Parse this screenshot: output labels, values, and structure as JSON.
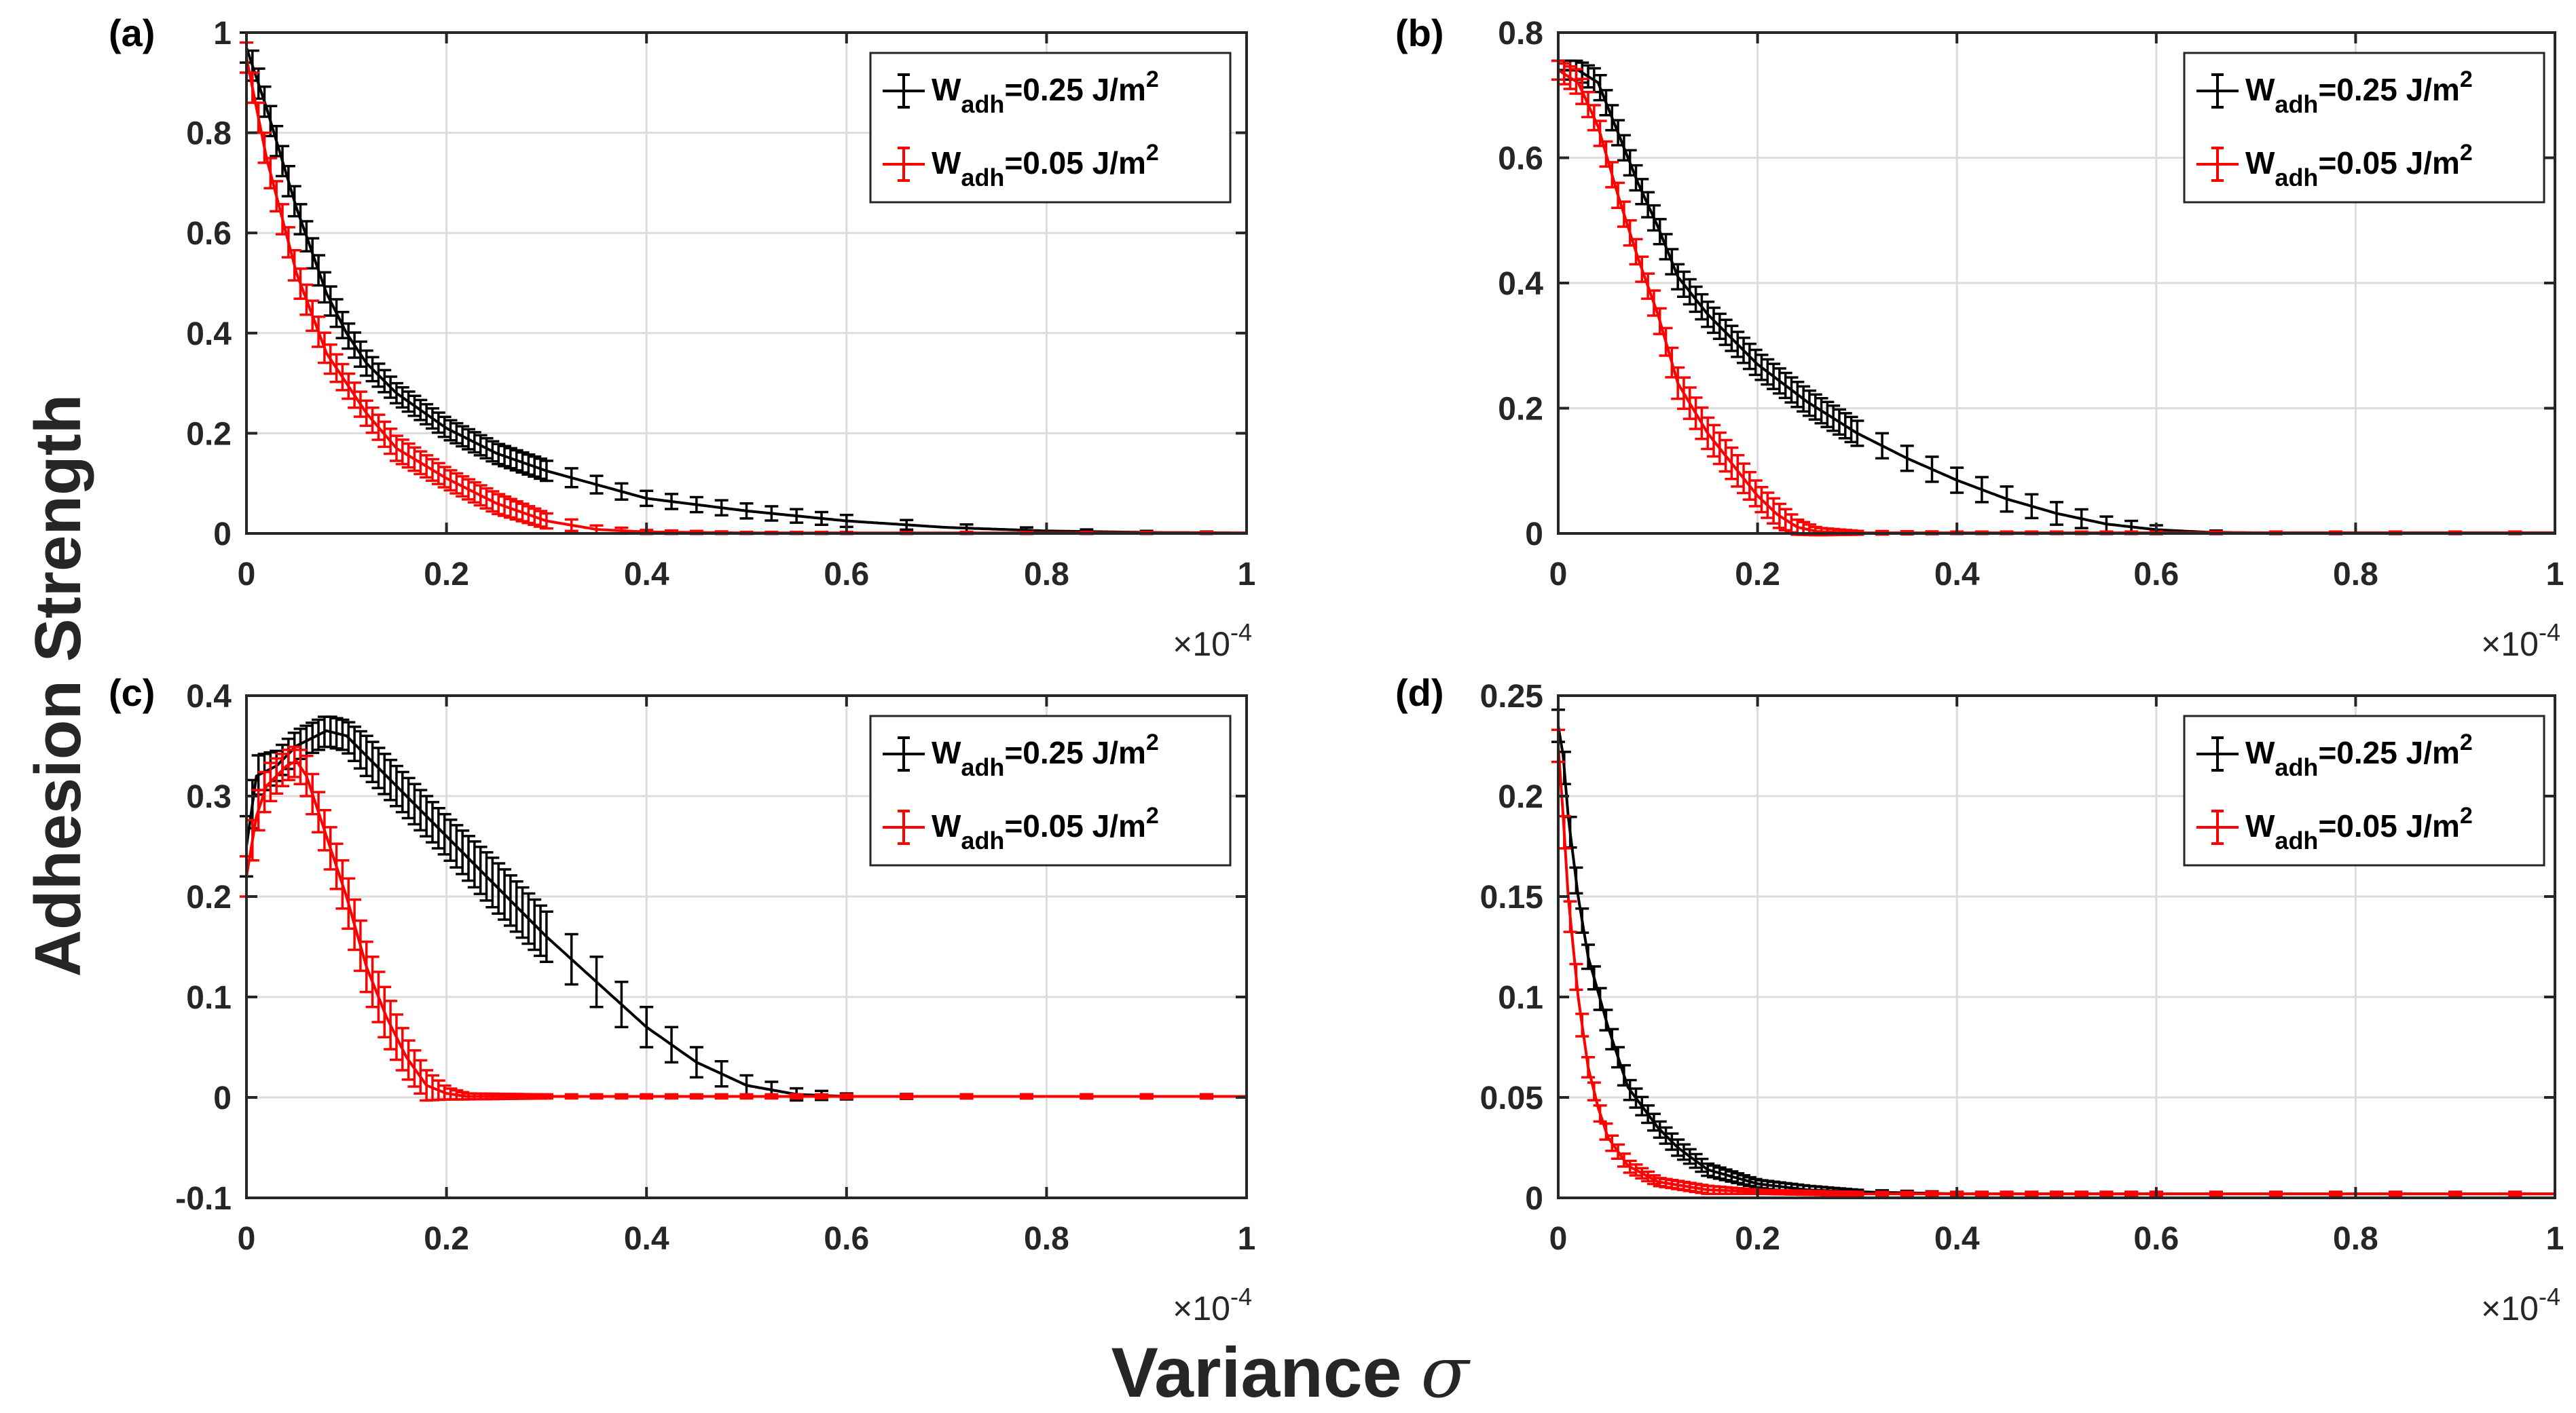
{
  "figure": {
    "ylabel": "Adhesion Strength",
    "xlabel": "Variance",
    "xlabel_symbol": "σ",
    "x_exponent_prefix": "×10",
    "x_exponent": "-4"
  },
  "colors": {
    "series1": "#000000",
    "series2": "#ff0000",
    "grid": "#dcdcdc",
    "axis": "#262626"
  },
  "chart_data": [
    {
      "type": "line",
      "panel_label": "(a)",
      "title": "",
      "xlabel": "Variance σ (×10^-4)",
      "ylabel": "Adhesion Strength",
      "xlim": [
        0,
        1
      ],
      "ylim": [
        0,
        1
      ],
      "x_ticks": [
        0,
        0.2,
        0.4,
        0.6,
        0.8,
        1
      ],
      "x_tick_labels": [
        "0",
        "0.2",
        "0.4",
        "0.6",
        "0.8",
        "1"
      ],
      "y_ticks": [
        0,
        0.2,
        0.4,
        0.6,
        0.8,
        1
      ],
      "y_tick_labels": [
        "0",
        "0.2",
        "0.4",
        "0.6",
        "0.8",
        "1"
      ],
      "grid": true,
      "legend_position": "top-right",
      "series": [
        {
          "name": "W_adh=0.25 J/m^2",
          "legend": {
            "main": "W",
            "sub": "adh",
            "rest": "=0.25 J/m",
            "sup": "2"
          },
          "x": [
            0,
            0.02,
            0.05,
            0.08,
            0.1,
            0.12,
            0.15,
            0.2,
            0.25,
            0.3,
            0.4,
            0.5,
            0.6,
            0.7,
            0.8,
            0.9,
            1.0
          ],
          "y": [
            0.97,
            0.85,
            0.65,
            0.48,
            0.4,
            0.34,
            0.28,
            0.21,
            0.16,
            0.125,
            0.07,
            0.045,
            0.025,
            0.012,
            0.005,
            0.002,
            0.001
          ],
          "err": [
            0.03,
            0.03,
            0.03,
            0.03,
            0.025,
            0.025,
            0.02,
            0.02,
            0.02,
            0.02,
            0.015,
            0.015,
            0.012,
            0.008,
            0.005,
            0.003,
            0.002
          ]
        },
        {
          "name": "W_adh=0.05 J/m^2",
          "legend": {
            "main": "W",
            "sub": "adh",
            "rest": "=0.05 J/m",
            "sup": "2"
          },
          "x": [
            0,
            0.02,
            0.05,
            0.08,
            0.1,
            0.12,
            0.15,
            0.2,
            0.25,
            0.3,
            0.35,
            0.4,
            0.5,
            0.6,
            0.8,
            1.0
          ],
          "y": [
            0.95,
            0.75,
            0.52,
            0.36,
            0.3,
            0.24,
            0.17,
            0.11,
            0.06,
            0.025,
            0.008,
            0.003,
            0.001,
            0.001,
            0.001,
            0.001
          ],
          "err": [
            0.03,
            0.03,
            0.03,
            0.03,
            0.025,
            0.025,
            0.025,
            0.02,
            0.02,
            0.015,
            0.008,
            0.004,
            0.002,
            0.002,
            0.002,
            0.002
          ]
        }
      ]
    },
    {
      "type": "line",
      "panel_label": "(b)",
      "title": "",
      "xlabel": "Variance σ (×10^-4)",
      "ylabel": "Adhesion Strength",
      "xlim": [
        0,
        1
      ],
      "ylim": [
        0,
        0.8
      ],
      "x_ticks": [
        0,
        0.2,
        0.4,
        0.6,
        0.8,
        1
      ],
      "x_tick_labels": [
        "0",
        "0.2",
        "0.4",
        "0.6",
        "0.8",
        "1"
      ],
      "y_ticks": [
        0,
        0.2,
        0.4,
        0.6,
        0.8
      ],
      "y_tick_labels": [
        "0",
        "0.2",
        "0.4",
        "0.6",
        "0.8"
      ],
      "grid": true,
      "legend_position": "top-right",
      "series": [
        {
          "name": "W_adh=0.25 J/m^2",
          "legend": {
            "main": "W",
            "sub": "adh",
            "rest": "=0.25 J/m",
            "sup": "2"
          },
          "x": [
            0,
            0.02,
            0.04,
            0.06,
            0.08,
            0.1,
            0.12,
            0.15,
            0.2,
            0.25,
            0.3,
            0.35,
            0.4,
            0.45,
            0.5,
            0.55,
            0.6,
            0.65,
            0.7,
            0.8,
            1.0
          ],
          "y": [
            0.74,
            0.74,
            0.72,
            0.64,
            0.56,
            0.49,
            0.41,
            0.35,
            0.27,
            0.21,
            0.16,
            0.12,
            0.085,
            0.055,
            0.032,
            0.015,
            0.006,
            0.002,
            0.001,
            0.001,
            0.001
          ],
          "err": [
            0.015,
            0.015,
            0.02,
            0.02,
            0.02,
            0.02,
            0.02,
            0.02,
            0.02,
            0.02,
            0.02,
            0.02,
            0.02,
            0.02,
            0.018,
            0.012,
            0.007,
            0.003,
            0.002,
            0.002,
            0.002
          ]
        },
        {
          "name": "W_adh=0.05 J/m^2",
          "legend": {
            "main": "W",
            "sub": "adh",
            "rest": "=0.05 J/m",
            "sup": "2"
          },
          "x": [
            0,
            0.02,
            0.04,
            0.06,
            0.08,
            0.1,
            0.12,
            0.15,
            0.18,
            0.2,
            0.22,
            0.24,
            0.26,
            0.3,
            0.4,
            0.6,
            0.8,
            1.0
          ],
          "y": [
            0.74,
            0.72,
            0.65,
            0.54,
            0.44,
            0.35,
            0.24,
            0.16,
            0.1,
            0.06,
            0.03,
            0.01,
            0.003,
            0.001,
            0.001,
            0.001,
            0.001,
            0.001
          ],
          "err": [
            0.015,
            0.02,
            0.02,
            0.02,
            0.02,
            0.02,
            0.025,
            0.025,
            0.025,
            0.02,
            0.02,
            0.012,
            0.006,
            0.003,
            0.002,
            0.002,
            0.002,
            0.002
          ]
        }
      ]
    },
    {
      "type": "line",
      "panel_label": "(c)",
      "title": "",
      "xlabel": "Variance σ (×10^-4)",
      "ylabel": "Adhesion Strength",
      "xlim": [
        0,
        1
      ],
      "ylim": [
        -0.1,
        0.4
      ],
      "x_ticks": [
        0,
        0.2,
        0.4,
        0.6,
        0.8,
        1
      ],
      "x_tick_labels": [
        "0",
        "0.2",
        "0.4",
        "0.6",
        "0.8",
        "1"
      ],
      "y_ticks": [
        -0.1,
        0,
        0.1,
        0.2,
        0.3,
        0.4
      ],
      "y_tick_labels": [
        "-0.1",
        "0",
        "0.1",
        "0.2",
        "0.3",
        "0.4"
      ],
      "grid": true,
      "legend_position": "top-right",
      "series": [
        {
          "name": "W_adh=0.25 J/m^2",
          "legend": {
            "main": "W",
            "sub": "adh",
            "rest": "=0.25 J/m",
            "sup": "2"
          },
          "x": [
            0,
            0.01,
            0.03,
            0.05,
            0.08,
            0.1,
            0.12,
            0.15,
            0.2,
            0.25,
            0.3,
            0.35,
            0.4,
            0.45,
            0.5,
            0.55,
            0.6,
            0.7,
            0.8,
            1.0
          ],
          "y": [
            0.25,
            0.32,
            0.33,
            0.35,
            0.365,
            0.36,
            0.34,
            0.31,
            0.26,
            0.21,
            0.16,
            0.115,
            0.07,
            0.035,
            0.012,
            0.003,
            0.001,
            0.001,
            0.001,
            0.001
          ],
          "err": [
            0.03,
            0.02,
            0.015,
            0.015,
            0.015,
            0.015,
            0.02,
            0.02,
            0.02,
            0.025,
            0.025,
            0.025,
            0.02,
            0.015,
            0.01,
            0.006,
            0.003,
            0.002,
            0.002,
            0.002
          ]
        },
        {
          "name": "W_adh=0.05 J/m^2",
          "legend": {
            "main": "W",
            "sub": "adh",
            "rest": "=0.05 J/m",
            "sup": "2"
          },
          "x": [
            0,
            0.01,
            0.02,
            0.04,
            0.05,
            0.06,
            0.08,
            0.1,
            0.12,
            0.14,
            0.16,
            0.18,
            0.2,
            0.22,
            0.3,
            0.4,
            0.6,
            0.8,
            1.0
          ],
          "y": [
            0.22,
            0.28,
            0.31,
            0.33,
            0.335,
            0.32,
            0.26,
            0.2,
            0.13,
            0.08,
            0.04,
            0.012,
            0.004,
            0.001,
            0.001,
            0.001,
            0.001,
            0.001,
            0.001
          ],
          "err": [
            0.02,
            0.02,
            0.02,
            0.015,
            0.015,
            0.02,
            0.02,
            0.025,
            0.025,
            0.025,
            0.02,
            0.015,
            0.006,
            0.003,
            0.002,
            0.002,
            0.002,
            0.002,
            0.002
          ]
        }
      ]
    },
    {
      "type": "line",
      "panel_label": "(d)",
      "title": "",
      "xlabel": "Variance σ (×10^-4)",
      "ylabel": "Adhesion Strength",
      "xlim": [
        0,
        1
      ],
      "ylim": [
        0,
        0.25
      ],
      "x_ticks": [
        0,
        0.2,
        0.4,
        0.6,
        0.8,
        1
      ],
      "x_tick_labels": [
        "0",
        "0.2",
        "0.4",
        "0.6",
        "0.8",
        "1"
      ],
      "y_ticks": [
        0,
        0.05,
        0.1,
        0.15,
        0.2,
        0.25
      ],
      "y_tick_labels": [
        "0",
        "0.05",
        "0.1",
        "0.15",
        "0.2",
        "0.25"
      ],
      "grid": true,
      "legend_position": "top-right",
      "series": [
        {
          "name": "W_adh=0.25 J/m^2",
          "legend": {
            "main": "W",
            "sub": "adh",
            "rest": "=0.25 J/m",
            "sup": "2"
          },
          "x": [
            0,
            0.005,
            0.01,
            0.02,
            0.03,
            0.05,
            0.07,
            0.1,
            0.12,
            0.15,
            0.2,
            0.25,
            0.3,
            0.4,
            0.6,
            0.8,
            1.0
          ],
          "y": [
            0.235,
            0.22,
            0.19,
            0.15,
            0.12,
            0.085,
            0.055,
            0.035,
            0.025,
            0.014,
            0.007,
            0.004,
            0.003,
            0.002,
            0.002,
            0.002,
            0.002
          ],
          "err": [
            0.008,
            0.008,
            0.008,
            0.006,
            0.006,
            0.005,
            0.005,
            0.004,
            0.004,
            0.003,
            0.002,
            0.002,
            0.001,
            0.001,
            0.001,
            0.001,
            0.001
          ]
        },
        {
          "name": "W_adh=0.05 J/m^2",
          "legend": {
            "main": "W",
            "sub": "adh",
            "rest": "=0.05 J/m",
            "sup": "2"
          },
          "x": [
            0,
            0.005,
            0.01,
            0.02,
            0.03,
            0.04,
            0.05,
            0.07,
            0.1,
            0.15,
            0.2,
            0.3,
            0.4,
            0.6,
            0.8,
            1.0
          ],
          "y": [
            0.225,
            0.19,
            0.15,
            0.1,
            0.065,
            0.045,
            0.03,
            0.016,
            0.008,
            0.004,
            0.003,
            0.002,
            0.002,
            0.002,
            0.002,
            0.002
          ],
          "err": [
            0.008,
            0.008,
            0.008,
            0.006,
            0.005,
            0.004,
            0.004,
            0.003,
            0.002,
            0.002,
            0.001,
            0.001,
            0.001,
            0.001,
            0.001,
            0.001
          ]
        }
      ]
    }
  ]
}
